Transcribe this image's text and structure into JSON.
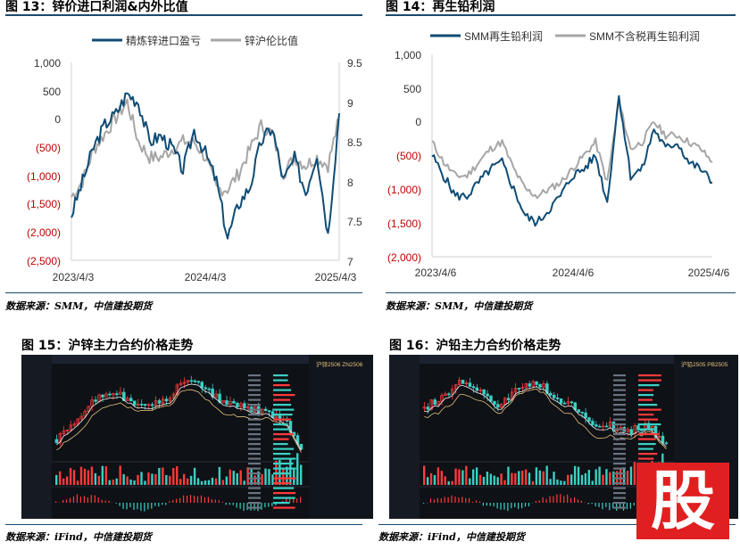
{
  "figures": {
    "fig13": {
      "title": "图 13：锌价进口利润&内外比值",
      "source": "数据来源：SMM，中信建投期货",
      "chart_data": {
        "type": "line",
        "series": [
          {
            "name": "精炼锌进口盈亏",
            "axis": "left",
            "color": "#0f4c75"
          },
          {
            "name": "锌沪伦比值",
            "axis": "right",
            "color": "#a6a6a6"
          }
        ],
        "left_axis": {
          "ticks": [
            "1,000",
            "500",
            "0",
            "(500)",
            "(1,000)",
            "(1,500)",
            "(2,000)",
            "(2,500)"
          ],
          "ylim": [
            -2500,
            1000
          ]
        },
        "right_axis": {
          "ticks": [
            "9.5",
            "9",
            "8.5",
            "8",
            "7.5",
            "7"
          ],
          "ylim": [
            7,
            9.5
          ]
        },
        "x_ticks": [
          "2023/4/3",
          "2024/4/3",
          "2025/4/3"
        ],
        "x": [
          "2023/4",
          "2023/5",
          "2023/6",
          "2023/7",
          "2023/8",
          "2023/9",
          "2023/10",
          "2023/11",
          "2023/12",
          "2024/1",
          "2024/2",
          "2024/3",
          "2024/4",
          "2024/5",
          "2024/6",
          "2024/7",
          "2024/8",
          "2024/9",
          "2024/10",
          "2024/11",
          "2024/12",
          "2025/1",
          "2025/2",
          "2025/3",
          "2025/4"
        ],
        "values_profit": [
          -1700,
          -1100,
          -500,
          -100,
          100,
          450,
          300,
          -400,
          -300,
          -500,
          -900,
          -200,
          -600,
          -1100,
          -2100,
          -1500,
          -1200,
          -400,
          -150,
          -1100,
          -700,
          -1300,
          -600,
          -2050,
          100
        ],
        "values_ratio": [
          7.8,
          8.0,
          8.4,
          8.6,
          8.8,
          9.0,
          8.5,
          8.3,
          8.3,
          8.4,
          8.5,
          8.5,
          8.3,
          7.9,
          7.9,
          8.1,
          8.4,
          8.7,
          8.6,
          8.1,
          8.3,
          8.2,
          8.3,
          8.2,
          8.8
        ]
      }
    },
    "fig14": {
      "title": "图 14：再生铅利润",
      "source": "数据来源：SMM，中信建投期货",
      "chart_data": {
        "type": "line",
        "series": [
          {
            "name": "SMM再生铅利润",
            "color": "#0f4c75"
          },
          {
            "name": "SMM不含税再生铅利润",
            "color": "#a6a6a6"
          }
        ],
        "y_ticks": [
          "1,000",
          "500",
          "0",
          "(500)",
          "(1,000)",
          "(1,500)",
          "(2,000)"
        ],
        "ylim": [
          -2000,
          1000
        ],
        "x_ticks": [
          "2023/4/6",
          "2024/4/6",
          "2025/4/6"
        ],
        "x": [
          "2023/4",
          "2023/5",
          "2023/6",
          "2023/7",
          "2023/8",
          "2023/9",
          "2023/10",
          "2023/11",
          "2023/12",
          "2024/1",
          "2024/2",
          "2024/3",
          "2024/4",
          "2024/5",
          "2024/6",
          "2024/7",
          "2024/8",
          "2024/9",
          "2024/10",
          "2024/11",
          "2024/12",
          "2025/1",
          "2025/2",
          "2025/3",
          "2025/4"
        ],
        "values_profit": [
          -500,
          -800,
          -1100,
          -1100,
          -900,
          -700,
          -600,
          -1000,
          -1400,
          -1500,
          -1300,
          -1100,
          -800,
          -700,
          -500,
          -1200,
          400,
          -800,
          -700,
          -100,
          -400,
          -300,
          -600,
          -700,
          -900
        ],
        "values_untaxed": [
          -300,
          -600,
          -800,
          -800,
          -600,
          -400,
          -300,
          -700,
          -1000,
          -1100,
          -1000,
          -900,
          -700,
          -500,
          -300,
          -900,
          300,
          -400,
          -300,
          0,
          -200,
          -200,
          -300,
          -400,
          -600
        ]
      }
    },
    "fig15": {
      "title": "图 15：沪锌主力合约价格走势",
      "source": "数据来源：iFind，中信建投期货",
      "contract": "沪锌2506 ZN2506"
    },
    "fig16": {
      "title": "图 16：沪铅主力合约价格走势",
      "source": "数据来源：iFind，中信建投期货",
      "contract": "沪铅2505 PB2505"
    },
    "watermark": "股"
  }
}
